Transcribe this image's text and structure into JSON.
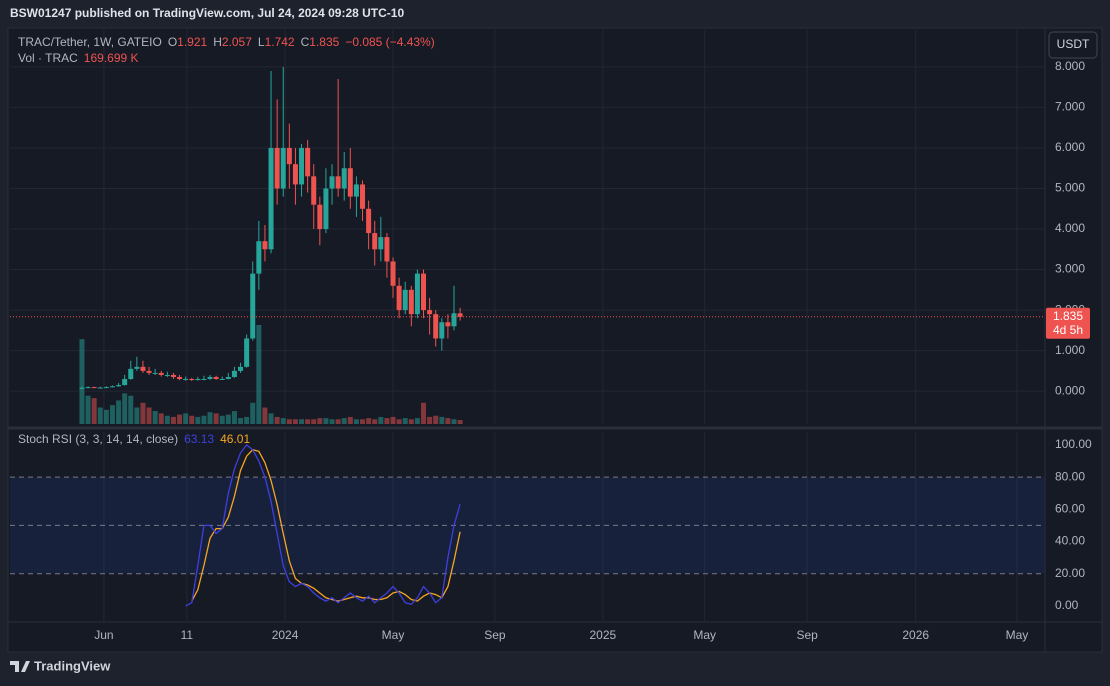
{
  "header": "BSW01247 published on TradingView.com, Jul 24, 2024 09:28 UTC-10",
  "brand": "TradingView",
  "chart_data": [
    {
      "type": "candlestick",
      "symbol": "TRAC/Tether, 1W, GATEIO",
      "ohlc_letters": [
        "O",
        "H",
        "L",
        "C"
      ],
      "change": "−0.085 (−4.43%)",
      "volume_title": "Vol · TRAC",
      "last_volume_label": "169.699 K",
      "countdown": "4d 5h",
      "currency": "USDT",
      "up_color": "#26a69a",
      "down_color": "#ef5350",
      "candles": [
        [
          0.07,
          0.12,
          0.06,
          0.08
        ],
        [
          0.08,
          0.12,
          0.07,
          0.1
        ],
        [
          0.1,
          0.11,
          0.08,
          0.09
        ],
        [
          0.09,
          0.11,
          0.08,
          0.09
        ],
        [
          0.09,
          0.12,
          0.08,
          0.1
        ],
        [
          0.1,
          0.14,
          0.09,
          0.12
        ],
        [
          0.12,
          0.2,
          0.11,
          0.15
        ],
        [
          0.15,
          0.4,
          0.14,
          0.3
        ],
        [
          0.3,
          0.75,
          0.28,
          0.55
        ],
        [
          0.55,
          0.85,
          0.5,
          0.6
        ],
        [
          0.6,
          0.75,
          0.45,
          0.5
        ],
        [
          0.5,
          0.6,
          0.4,
          0.45
        ],
        [
          0.45,
          0.55,
          0.4,
          0.45
        ],
        [
          0.45,
          0.5,
          0.36,
          0.4
        ],
        [
          0.4,
          0.48,
          0.35,
          0.4
        ],
        [
          0.4,
          0.45,
          0.3,
          0.35
        ],
        [
          0.35,
          0.4,
          0.27,
          0.3
        ],
        [
          0.3,
          0.36,
          0.26,
          0.3
        ],
        [
          0.3,
          0.33,
          0.25,
          0.28
        ],
        [
          0.28,
          0.35,
          0.26,
          0.3
        ],
        [
          0.3,
          0.38,
          0.27,
          0.3
        ],
        [
          0.3,
          0.4,
          0.28,
          0.35
        ],
        [
          0.35,
          0.38,
          0.28,
          0.3
        ],
        [
          0.3,
          0.36,
          0.28,
          0.3
        ],
        [
          0.3,
          0.45,
          0.29,
          0.35
        ],
        [
          0.35,
          0.6,
          0.33,
          0.5
        ],
        [
          0.5,
          0.7,
          0.45,
          0.6
        ],
        [
          0.6,
          1.4,
          0.58,
          1.3
        ],
        [
          1.3,
          3.2,
          1.25,
          2.9
        ],
        [
          2.9,
          4.2,
          2.5,
          3.7
        ],
        [
          3.7,
          4.1,
          3.2,
          3.5
        ],
        [
          3.5,
          7.9,
          3.4,
          6.0
        ],
        [
          6.0,
          7.2,
          4.6,
          5.0
        ],
        [
          5.0,
          8.0,
          4.8,
          6.0
        ],
        [
          6.0,
          6.6,
          5.0,
          5.6
        ],
        [
          5.6,
          6.0,
          4.6,
          5.1
        ],
        [
          5.1,
          6.1,
          4.8,
          6.0
        ],
        [
          6.0,
          6.2,
          4.9,
          5.3
        ],
        [
          5.3,
          5.6,
          4.0,
          4.6
        ],
        [
          4.6,
          4.8,
          3.6,
          4.0
        ],
        [
          4.0,
          5.5,
          3.9,
          5.0
        ],
        [
          5.0,
          5.6,
          4.6,
          5.3
        ],
        [
          5.3,
          7.7,
          4.8,
          5.0
        ],
        [
          5.0,
          5.9,
          4.7,
          5.5
        ],
        [
          5.5,
          6.0,
          4.5,
          4.8
        ],
        [
          4.8,
          5.3,
          4.3,
          5.1
        ],
        [
          5.1,
          5.2,
          4.2,
          4.5
        ],
        [
          4.5,
          4.7,
          3.5,
          3.9
        ],
        [
          3.9,
          4.2,
          3.1,
          3.5
        ],
        [
          3.5,
          4.3,
          3.2,
          3.8
        ],
        [
          3.8,
          3.9,
          2.8,
          3.2
        ],
        [
          3.2,
          3.3,
          2.3,
          2.6
        ],
        [
          2.6,
          2.8,
          1.8,
          2.0
        ],
        [
          2.0,
          2.7,
          1.9,
          2.5
        ],
        [
          2.5,
          2.6,
          1.6,
          1.9
        ],
        [
          1.9,
          3.0,
          1.8,
          2.9
        ],
        [
          2.9,
          3.0,
          1.8,
          2.0
        ],
        [
          2.0,
          2.3,
          1.4,
          1.9
        ],
        [
          1.9,
          2.0,
          1.1,
          1.3
        ],
        [
          1.3,
          1.8,
          1.0,
          1.7
        ],
        [
          1.7,
          1.9,
          1.3,
          1.6
        ],
        [
          1.6,
          2.6,
          1.5,
          1.921
        ],
        [
          1.921,
          2.057,
          1.742,
          1.835
        ]
      ],
      "volume": [
        3600,
        1200,
        1100,
        700,
        600,
        800,
        1000,
        1300,
        1200,
        700,
        900,
        700,
        550,
        450,
        350,
        300,
        400,
        450,
        350,
        300,
        350,
        500,
        450,
        350,
        400,
        550,
        250,
        300,
        900,
        4200,
        700,
        450,
        300,
        250,
        200,
        200,
        200,
        200,
        200,
        250,
        250,
        200,
        200,
        250,
        300,
        200,
        200,
        250,
        200,
        300,
        250,
        300,
        200,
        250,
        200,
        250,
        900,
        300,
        350,
        300,
        250,
        200,
        169.699
      ],
      "xlim": [
        -11.8,
        157.9
      ],
      "xticks": [
        {
          "value": 3.6,
          "label": "Jun"
        },
        {
          "value": 17.2,
          "label": "11"
        },
        {
          "value": 33.3,
          "label": "2024"
        },
        {
          "value": 51,
          "label": "May"
        },
        {
          "value": 67.7,
          "label": "Sep"
        },
        {
          "value": 85.4,
          "label": "2025"
        },
        {
          "value": 102.1,
          "label": "May"
        },
        {
          "value": 118.9,
          "label": "Sep"
        },
        {
          "value": 136.7,
          "label": "2026"
        },
        {
          "value": 153.3,
          "label": "May"
        }
      ],
      "ylim": [
        -0.81,
        8.91
      ],
      "yticks": [
        {
          "value": 0,
          "label": "0.000"
        },
        {
          "value": 1,
          "label": "1.000"
        },
        {
          "value": 2,
          "label": "2.000"
        },
        {
          "value": 3,
          "label": "3.000"
        },
        {
          "value": 4,
          "label": "4.000"
        },
        {
          "value": 5,
          "label": "5.000"
        },
        {
          "value": 6,
          "label": "6.000"
        },
        {
          "value": 7,
          "label": "7.000"
        },
        {
          "value": 8,
          "label": "8.000"
        }
      ],
      "grid": true
    },
    {
      "type": "line",
      "title": "Stoch RSI (3, 3, 14, 14, close)",
      "series": [
        {
          "name": "63.13",
          "color": "#3f3fe0",
          "values": [
            null,
            null,
            null,
            null,
            null,
            null,
            null,
            null,
            null,
            null,
            null,
            null,
            null,
            null,
            null,
            null,
            null,
            0,
            2,
            25,
            50,
            50,
            45,
            48,
            70,
            85,
            95,
            100,
            97,
            90,
            80,
            65,
            45,
            25,
            15,
            12,
            14,
            12,
            8,
            5,
            3,
            5,
            2,
            5,
            8,
            5,
            3,
            6,
            2,
            5,
            8,
            12,
            8,
            2,
            1,
            5,
            12,
            8,
            2,
            5,
            30,
            50,
            63.13
          ]
        },
        {
          "name": "46.01",
          "color": "#f5a623",
          "values": [
            null,
            null,
            null,
            null,
            null,
            null,
            null,
            null,
            null,
            null,
            null,
            null,
            null,
            null,
            null,
            null,
            null,
            null,
            3,
            10,
            25,
            42,
            48,
            48,
            55,
            68,
            84,
            93,
            97,
            96,
            89,
            78,
            63,
            45,
            28,
            17,
            14,
            13,
            11,
            8,
            5,
            4,
            3,
            4,
            5,
            6,
            5,
            5,
            4,
            4,
            5,
            8,
            9,
            7,
            4,
            3,
            6,
            8,
            7,
            5,
            12,
            28,
            46.01
          ]
        }
      ],
      "band": [
        20,
        80
      ],
      "dashed_levels": [
        20,
        50,
        80
      ],
      "ylim": [
        -10,
        108
      ],
      "yticks": [
        {
          "value": 0,
          "label": "0.00"
        },
        {
          "value": 20,
          "label": "20.00"
        },
        {
          "value": 40,
          "label": "40.00"
        },
        {
          "value": 60,
          "label": "60.00"
        },
        {
          "value": 80,
          "label": "80.00"
        },
        {
          "value": 100,
          "label": "100.00"
        }
      ],
      "grid": true
    }
  ]
}
